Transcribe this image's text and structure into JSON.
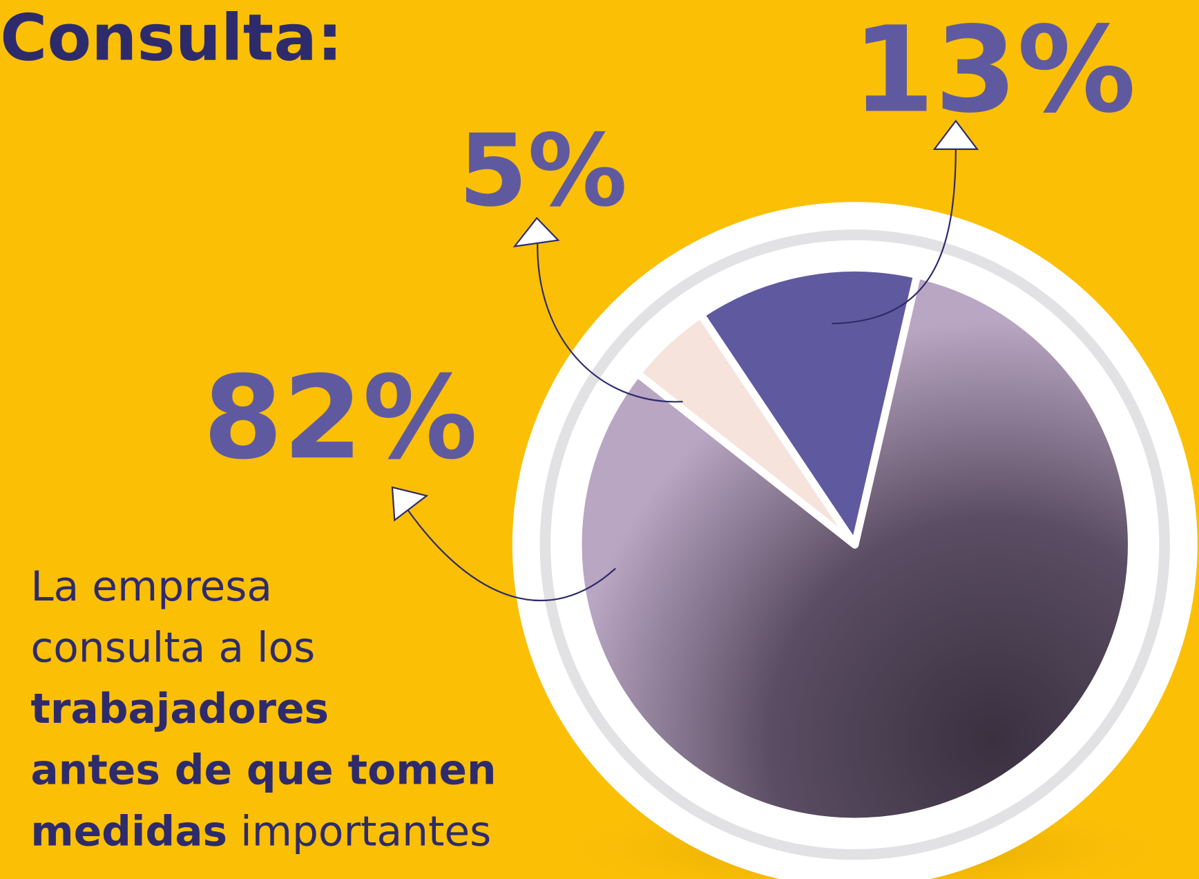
{
  "chart_data": {
    "type": "pie",
    "title": "Consulta:",
    "categories": [
      null,
      null,
      null
    ],
    "values": [
      82,
      5,
      13
    ],
    "value_labels": [
      "82%",
      "5%",
      "13%"
    ],
    "colors": [
      "#b9a6c2",
      "#f6e3db",
      "#5f5a9f"
    ],
    "description_lines": [
      [
        {
          "text": "La empresa",
          "bold": false
        }
      ],
      [
        {
          "text": "consulta a los",
          "bold": false
        }
      ],
      [
        {
          "text": "trabajadores",
          "bold": true
        }
      ],
      [
        {
          "text": "antes de que tomen",
          "bold": true
        }
      ],
      [
        {
          "text": "medidas",
          "bold": true
        },
        {
          "text": " importantes",
          "bold": false
        }
      ]
    ]
  }
}
